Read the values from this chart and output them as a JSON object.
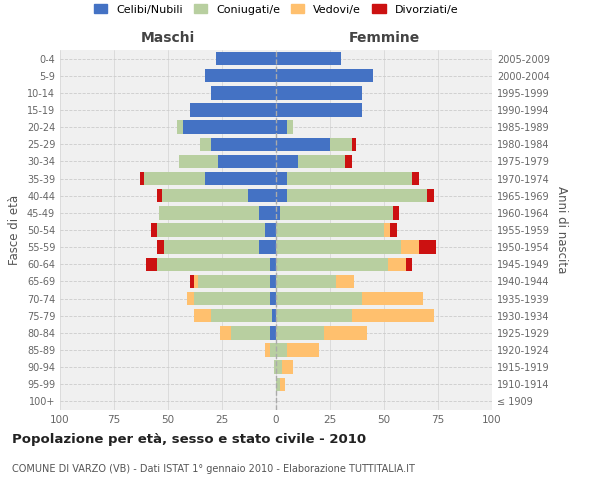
{
  "age_groups": [
    "100+",
    "95-99",
    "90-94",
    "85-89",
    "80-84",
    "75-79",
    "70-74",
    "65-69",
    "60-64",
    "55-59",
    "50-54",
    "45-49",
    "40-44",
    "35-39",
    "30-34",
    "25-29",
    "20-24",
    "15-19",
    "10-14",
    "5-9",
    "0-4"
  ],
  "birth_years": [
    "≤ 1909",
    "1910-1914",
    "1915-1919",
    "1920-1924",
    "1925-1929",
    "1930-1934",
    "1935-1939",
    "1940-1944",
    "1945-1949",
    "1950-1954",
    "1955-1959",
    "1960-1964",
    "1965-1969",
    "1970-1974",
    "1975-1979",
    "1980-1984",
    "1985-1989",
    "1990-1994",
    "1995-1999",
    "2000-2004",
    "2005-2009"
  ],
  "maschi_celibi": [
    0,
    0,
    0,
    0,
    3,
    2,
    3,
    3,
    3,
    8,
    5,
    8,
    13,
    33,
    27,
    30,
    43,
    40,
    30,
    33,
    28
  ],
  "maschi_coniugati": [
    0,
    0,
    1,
    3,
    18,
    28,
    35,
    33,
    52,
    44,
    50,
    46,
    40,
    28,
    18,
    5,
    3,
    0,
    0,
    0,
    0
  ],
  "maschi_vedovi": [
    0,
    0,
    0,
    2,
    5,
    8,
    3,
    2,
    0,
    0,
    0,
    0,
    0,
    0,
    0,
    0,
    0,
    0,
    0,
    0,
    0
  ],
  "maschi_divorziati": [
    0,
    0,
    0,
    0,
    0,
    0,
    0,
    2,
    5,
    3,
    3,
    0,
    2,
    2,
    0,
    0,
    0,
    0,
    0,
    0,
    0
  ],
  "femmine_nubili": [
    0,
    0,
    0,
    0,
    0,
    0,
    0,
    0,
    0,
    0,
    0,
    2,
    5,
    5,
    10,
    25,
    5,
    40,
    40,
    45,
    30
  ],
  "femmine_coniugate": [
    0,
    2,
    3,
    5,
    22,
    35,
    40,
    28,
    52,
    58,
    50,
    52,
    65,
    58,
    22,
    10,
    3,
    0,
    0,
    0,
    0
  ],
  "femmine_vedove": [
    0,
    2,
    5,
    15,
    20,
    38,
    28,
    8,
    8,
    8,
    3,
    0,
    0,
    0,
    0,
    0,
    0,
    0,
    0,
    0,
    0
  ],
  "femmine_divorziate": [
    0,
    0,
    0,
    0,
    0,
    0,
    0,
    0,
    3,
    8,
    3,
    3,
    3,
    3,
    3,
    2,
    0,
    0,
    0,
    0,
    0
  ],
  "color_celibi": "#4472c4",
  "color_coniugati": "#b8cfa0",
  "color_vedovi": "#ffc06e",
  "color_divorziati": "#cc1111",
  "title": "Popolazione per età, sesso e stato civile - 2010",
  "subtitle": "COMUNE DI VARZO (VB) - Dati ISTAT 1° gennaio 2010 - Elaborazione TUTTITALIA.IT",
  "label_maschi": "Maschi",
  "label_femmine": "Femmine",
  "ylabel_left": "Fasce di età",
  "ylabel_right": "Anni di nascita",
  "legend_labels": [
    "Celibi/Nubili",
    "Coniugati/e",
    "Vedovi/e",
    "Divorziati/e"
  ],
  "xlim": 100,
  "xtick_vals": [
    -100,
    -75,
    -50,
    -25,
    0,
    25,
    50,
    75,
    100
  ]
}
